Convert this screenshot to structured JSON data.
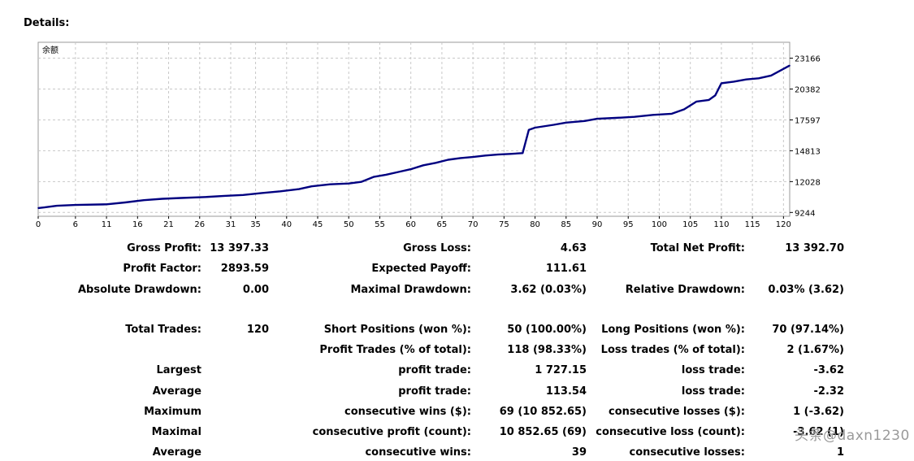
{
  "header": {
    "title": "Details:"
  },
  "chart_data": {
    "type": "line",
    "series_label": "余额",
    "x_ticks": [
      0,
      6,
      11,
      16,
      21,
      26,
      31,
      35,
      40,
      45,
      50,
      55,
      60,
      65,
      70,
      75,
      80,
      85,
      90,
      95,
      100,
      105,
      110,
      115,
      120
    ],
    "y_ticks": [
      9244,
      12028,
      14813,
      17597,
      20382,
      23166
    ],
    "xlim": [
      0,
      121
    ],
    "ylim": [
      8900,
      24600
    ],
    "grid": true,
    "line_color": "#000080",
    "points": [
      [
        0,
        9644
      ],
      [
        1,
        9700
      ],
      [
        3,
        9850
      ],
      [
        6,
        9920
      ],
      [
        11,
        9980
      ],
      [
        14,
        10150
      ],
      [
        17,
        10350
      ],
      [
        20,
        10480
      ],
      [
        23,
        10550
      ],
      [
        27,
        10640
      ],
      [
        30,
        10740
      ],
      [
        33,
        10820
      ],
      [
        36,
        11000
      ],
      [
        39,
        11150
      ],
      [
        42,
        11350
      ],
      [
        44,
        11600
      ],
      [
        47,
        11780
      ],
      [
        50,
        11860
      ],
      [
        52,
        12000
      ],
      [
        54,
        12450
      ],
      [
        56,
        12650
      ],
      [
        58,
        12900
      ],
      [
        60,
        13150
      ],
      [
        62,
        13500
      ],
      [
        64,
        13720
      ],
      [
        66,
        14000
      ],
      [
        68,
        14150
      ],
      [
        70,
        14250
      ],
      [
        72,
        14380
      ],
      [
        74,
        14470
      ],
      [
        76,
        14530
      ],
      [
        78,
        14600
      ],
      [
        79,
        16700
      ],
      [
        80,
        16900
      ],
      [
        83,
        17150
      ],
      [
        85,
        17350
      ],
      [
        88,
        17500
      ],
      [
        90,
        17700
      ],
      [
        93,
        17780
      ],
      [
        96,
        17870
      ],
      [
        99,
        18050
      ],
      [
        102,
        18150
      ],
      [
        104,
        18550
      ],
      [
        106,
        19250
      ],
      [
        108,
        19400
      ],
      [
        109,
        19800
      ],
      [
        110,
        20900
      ],
      [
        112,
        21050
      ],
      [
        114,
        21250
      ],
      [
        116,
        21350
      ],
      [
        118,
        21600
      ],
      [
        120,
        22200
      ],
      [
        121,
        22500
      ]
    ]
  },
  "stats": {
    "gross_profit_label": "Gross Profit:",
    "gross_profit": "13 397.33",
    "gross_loss_label": "Gross Loss:",
    "gross_loss": "4.63",
    "total_net_profit_label": "Total Net Profit:",
    "total_net_profit": "13 392.70",
    "profit_factor_label": "Profit Factor:",
    "profit_factor": "2893.59",
    "expected_payoff_label": "Expected Payoff:",
    "expected_payoff": "111.61",
    "absolute_drawdown_label": "Absolute Drawdown:",
    "absolute_drawdown": "0.00",
    "maximal_drawdown_label": "Maximal Drawdown:",
    "maximal_drawdown": "3.62 (0.03%)",
    "relative_drawdown_label": "Relative Drawdown:",
    "relative_drawdown": "0.03% (3.62)",
    "total_trades_label": "Total Trades:",
    "total_trades": "120",
    "short_positions_label": "Short Positions (won %):",
    "short_positions": "50 (100.00%)",
    "long_positions_label": "Long Positions (won %):",
    "long_positions": "70 (97.14%)",
    "profit_trades_label": "Profit Trades (% of total):",
    "profit_trades": "118 (98.33%)",
    "loss_trades_label": "Loss trades (% of total):",
    "loss_trades": "2 (1.67%)",
    "largest_label": "Largest",
    "largest_profit_label": "profit trade:",
    "largest_profit": "1 727.15",
    "largest_loss_label": "loss trade:",
    "largest_loss": "-3.62",
    "average_label": "Average",
    "average_profit_label": "profit trade:",
    "average_profit": "113.54",
    "average_loss_label": "loss trade:",
    "average_loss": "-2.32",
    "maximum_label": "Maximum",
    "max_cons_wins_label": "consecutive wins ($):",
    "max_cons_wins": "69 (10 852.65)",
    "max_cons_losses_label": "consecutive losses ($):",
    "max_cons_losses": "1 (-3.62)",
    "maximal_label": "Maximal",
    "maximal_cons_profit_label": "consecutive profit (count):",
    "maximal_cons_profit": "10 852.65 (69)",
    "maximal_cons_loss_label": "consecutive loss (count):",
    "maximal_cons_loss": "-3.62 (1)",
    "average2_label": "Average",
    "avg_cons_wins_label": "consecutive wins:",
    "avg_cons_wins": "39",
    "avg_cons_losses_label": "consecutive losses:",
    "avg_cons_losses": "1"
  },
  "watermark": "头条@daxn1230"
}
